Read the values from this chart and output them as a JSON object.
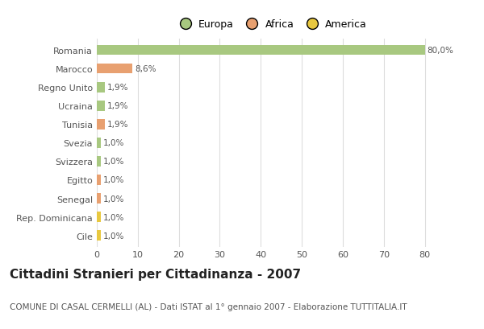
{
  "categories": [
    "Romania",
    "Marocco",
    "Regno Unito",
    "Ucraina",
    "Tunisia",
    "Svezia",
    "Svizzera",
    "Egitto",
    "Senegal",
    "Rep. Dominicana",
    "Cile"
  ],
  "values": [
    80.0,
    8.6,
    1.9,
    1.9,
    1.9,
    1.0,
    1.0,
    1.0,
    1.0,
    1.0,
    1.0
  ],
  "labels": [
    "80,0%",
    "8,6%",
    "1,9%",
    "1,9%",
    "1,9%",
    "1,0%",
    "1,0%",
    "1,0%",
    "1,0%",
    "1,0%",
    "1,0%"
  ],
  "colors": [
    "#a8c880",
    "#e8a070",
    "#a8c880",
    "#a8c880",
    "#e8a070",
    "#a8c880",
    "#a8c880",
    "#e8a070",
    "#e8a070",
    "#e8c840",
    "#e8c840"
  ],
  "legend_labels": [
    "Europa",
    "Africa",
    "America"
  ],
  "legend_colors": [
    "#a8c880",
    "#e8a070",
    "#e8c840"
  ],
  "title": "Cittadini Stranieri per Cittadinanza - 2007",
  "subtitle": "COMUNE DI CASAL CERMELLI (AL) - Dati ISTAT al 1° gennaio 2007 - Elaborazione TUTTITALIA.IT",
  "xlim": [
    0,
    85
  ],
  "xticks": [
    0,
    10,
    20,
    30,
    40,
    50,
    60,
    70,
    80
  ],
  "background_color": "#ffffff",
  "grid_color": "#dddddd",
  "bar_height": 0.55,
  "title_fontsize": 11,
  "subtitle_fontsize": 7.5,
  "label_fontsize": 7.5,
  "tick_fontsize": 8,
  "legend_fontsize": 9
}
